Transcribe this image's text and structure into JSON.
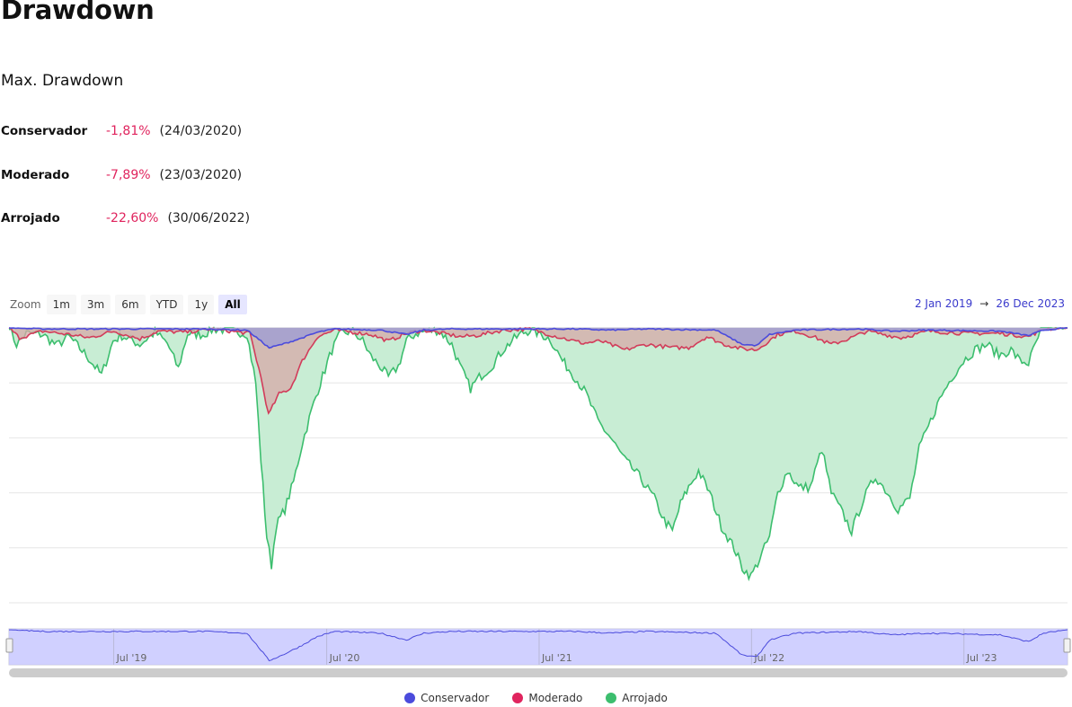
{
  "page": {
    "title": "Drawdown",
    "subtitle": "Max. Drawdown"
  },
  "max_drawdown": [
    {
      "name": "Conservador",
      "value": "-1,81%",
      "date": "(24/03/2020)"
    },
    {
      "name": "Moderado",
      "value": "-7,89%",
      "date": "(23/03/2020)"
    },
    {
      "name": "Arrojado",
      "value": "-22,60%",
      "date": "(30/06/2022)"
    }
  ],
  "zoom": {
    "label": "Zoom",
    "buttons": [
      "1m",
      "3m",
      "6m",
      "YTD",
      "1y",
      "All"
    ],
    "active": "All"
  },
  "range": {
    "from": "2 Jan 2019",
    "arrow": "→",
    "to": "26 Dec 2023"
  },
  "navigator": {
    "labels": [
      "Jul '19",
      "Jul '20",
      "Jul '21",
      "Jul '22",
      "Jul '23"
    ]
  },
  "chart_data": {
    "type": "area",
    "xlabel": "",
    "ylabel": "",
    "x_range": [
      "2019-01-02",
      "2023-12-26"
    ],
    "ylim": [
      -25,
      0
    ],
    "grid": true,
    "legend": "bottom-center",
    "series": [
      {
        "name": "Conservador",
        "color": "#4b4bdc",
        "fill": "#9b9bd6",
        "points": [
          [
            "2019-01-02",
            0
          ],
          [
            "2019-03-01",
            -0.1
          ],
          [
            "2019-06-01",
            -0.1
          ],
          [
            "2019-09-01",
            -0.1
          ],
          [
            "2019-12-01",
            -0.1
          ],
          [
            "2020-02-15",
            -0.2
          ],
          [
            "2020-03-10",
            -1.2
          ],
          [
            "2020-03-24",
            -1.81
          ],
          [
            "2020-04-15",
            -1.5
          ],
          [
            "2020-05-15",
            -1.0
          ],
          [
            "2020-06-15",
            -0.4
          ],
          [
            "2020-07-15",
            -0.1
          ],
          [
            "2020-10-01",
            -0.2
          ],
          [
            "2020-11-15",
            -0.6
          ],
          [
            "2020-12-15",
            -0.2
          ],
          [
            "2021-02-01",
            -0.1
          ],
          [
            "2021-06-01",
            -0.1
          ],
          [
            "2021-09-01",
            -0.1
          ],
          [
            "2021-11-01",
            -0.2
          ],
          [
            "2022-01-01",
            -0.1
          ],
          [
            "2022-05-01",
            -0.2
          ],
          [
            "2022-06-15",
            -1.5
          ],
          [
            "2022-07-10",
            -1.6
          ],
          [
            "2022-08-01",
            -0.6
          ],
          [
            "2022-09-15",
            -0.2
          ],
          [
            "2023-01-01",
            -0.1
          ],
          [
            "2023-03-01",
            -0.3
          ],
          [
            "2023-05-01",
            -0.2
          ],
          [
            "2023-09-01",
            -0.3
          ],
          [
            "2023-10-20",
            -0.7
          ],
          [
            "2023-11-15",
            -0.2
          ],
          [
            "2023-12-26",
            0
          ]
        ]
      },
      {
        "name": "Moderado",
        "color": "#d23c5a",
        "fill": "#d7a8a8",
        "points": [
          [
            "2019-01-02",
            0
          ],
          [
            "2019-01-20",
            -0.9
          ],
          [
            "2019-03-01",
            -0.3
          ],
          [
            "2019-04-15",
            -0.6
          ],
          [
            "2019-05-20",
            -0.9
          ],
          [
            "2019-07-01",
            -0.3
          ],
          [
            "2019-08-15",
            -1.0
          ],
          [
            "2019-09-15",
            -0.3
          ],
          [
            "2019-11-01",
            -0.4
          ],
          [
            "2019-12-15",
            -0.1
          ],
          [
            "2020-02-20",
            -0.5
          ],
          [
            "2020-03-10",
            -4.5
          ],
          [
            "2020-03-23",
            -7.89
          ],
          [
            "2020-04-10",
            -6.0
          ],
          [
            "2020-04-30",
            -5.5
          ],
          [
            "2020-05-20",
            -3.0
          ],
          [
            "2020-06-15",
            -0.8
          ],
          [
            "2020-07-15",
            -0.2
          ],
          [
            "2020-09-15",
            -0.6
          ],
          [
            "2020-10-15",
            -1.2
          ],
          [
            "2020-11-15",
            -0.5
          ],
          [
            "2020-12-15",
            -0.2
          ],
          [
            "2021-02-15",
            -0.8
          ],
          [
            "2021-03-15",
            -0.7
          ],
          [
            "2021-05-01",
            -0.2
          ],
          [
            "2021-06-15",
            -0.1
          ],
          [
            "2021-08-01",
            -0.8
          ],
          [
            "2021-09-15",
            -1.4
          ],
          [
            "2021-10-15",
            -1.2
          ],
          [
            "2021-11-25",
            -2.0
          ],
          [
            "2022-01-01",
            -1.5
          ],
          [
            "2022-02-15",
            -1.8
          ],
          [
            "2022-03-15",
            -1.8
          ],
          [
            "2022-04-15",
            -0.8
          ],
          [
            "2022-05-15",
            -1.5
          ],
          [
            "2022-06-15",
            -1.9
          ],
          [
            "2022-07-10",
            -2.0
          ],
          [
            "2022-08-15",
            -0.6
          ],
          [
            "2022-09-15",
            -0.3
          ],
          [
            "2022-10-15",
            -0.8
          ],
          [
            "2022-11-15",
            -1.5
          ],
          [
            "2022-12-15",
            -1.0
          ],
          [
            "2023-01-15",
            -0.3
          ],
          [
            "2023-03-15",
            -0.9
          ],
          [
            "2023-05-01",
            -0.3
          ],
          [
            "2023-07-01",
            -0.5
          ],
          [
            "2023-09-01",
            -0.5
          ],
          [
            "2023-10-20",
            -0.8
          ],
          [
            "2023-11-15",
            -0.1
          ],
          [
            "2023-12-26",
            0
          ]
        ]
      },
      {
        "name": "Arrojado",
        "color": "#3cbe6e",
        "fill": "#c8edd4",
        "points": [
          [
            "2019-01-02",
            0
          ],
          [
            "2019-01-15",
            -1.5
          ],
          [
            "2019-02-01",
            -0.5
          ],
          [
            "2019-03-01",
            -0.6
          ],
          [
            "2019-03-25",
            -1.6
          ],
          [
            "2019-04-15",
            -0.8
          ],
          [
            "2019-05-15",
            -2.5
          ],
          [
            "2019-06-10",
            -4.3
          ],
          [
            "2019-06-30",
            -1.2
          ],
          [
            "2019-07-15",
            -0.7
          ],
          [
            "2019-08-15",
            -1.5
          ],
          [
            "2019-09-10",
            -0.4
          ],
          [
            "2019-10-01",
            -1.4
          ],
          [
            "2019-10-20",
            -3.7
          ],
          [
            "2019-11-05",
            -0.5
          ],
          [
            "2019-12-01",
            -0.6
          ],
          [
            "2019-12-20",
            -0.1
          ],
          [
            "2020-01-15",
            -0.2
          ],
          [
            "2020-02-15",
            -0.5
          ],
          [
            "2020-03-01",
            -5.0
          ],
          [
            "2020-03-10",
            -12.0
          ],
          [
            "2020-03-20",
            -19.0
          ],
          [
            "2020-03-28",
            -21.6
          ],
          [
            "2020-04-05",
            -18.0
          ],
          [
            "2020-04-20",
            -16.5
          ],
          [
            "2020-05-05",
            -14.0
          ],
          [
            "2020-05-20",
            -10.5
          ],
          [
            "2020-06-05",
            -7.5
          ],
          [
            "2020-06-20",
            -5.0
          ],
          [
            "2020-07-10",
            -2.0
          ],
          [
            "2020-07-25",
            -0.5
          ],
          [
            "2020-08-15",
            -0.3
          ],
          [
            "2020-09-01",
            -1.2
          ],
          [
            "2020-09-15",
            -2.6
          ],
          [
            "2020-10-01",
            -3.5
          ],
          [
            "2020-10-15",
            -4.5
          ],
          [
            "2020-11-01",
            -3.5
          ],
          [
            "2020-11-15",
            -1.2
          ],
          [
            "2020-12-01",
            -0.5
          ],
          [
            "2020-12-20",
            -0.3
          ],
          [
            "2021-01-10",
            -0.2
          ],
          [
            "2021-02-01",
            -1.5
          ],
          [
            "2021-02-15",
            -3.5
          ],
          [
            "2021-03-05",
            -5.5
          ],
          [
            "2021-03-20",
            -4.5
          ],
          [
            "2021-04-10",
            -3.5
          ],
          [
            "2021-04-30",
            -2.0
          ],
          [
            "2021-05-15",
            -1.2
          ],
          [
            "2021-06-01",
            -0.5
          ],
          [
            "2021-06-15",
            -0.2
          ],
          [
            "2021-07-01",
            -0.5
          ],
          [
            "2021-07-20",
            -1.0
          ],
          [
            "2021-08-10",
            -3.0
          ],
          [
            "2021-09-01",
            -4.5
          ],
          [
            "2021-09-20",
            -6.0
          ],
          [
            "2021-10-10",
            -8.5
          ],
          [
            "2021-11-01",
            -10.0
          ],
          [
            "2021-11-25",
            -12.0
          ],
          [
            "2021-12-20",
            -13.5
          ],
          [
            "2022-01-15",
            -15.5
          ],
          [
            "2022-02-01",
            -17.5
          ],
          [
            "2022-02-15",
            -18.5
          ],
          [
            "2022-03-01",
            -16.0
          ],
          [
            "2022-03-15",
            -14.5
          ],
          [
            "2022-04-01",
            -13.0
          ],
          [
            "2022-04-20",
            -15.0
          ],
          [
            "2022-05-10",
            -18.0
          ],
          [
            "2022-06-01",
            -20.0
          ],
          [
            "2022-06-15",
            -21.8
          ],
          [
            "2022-06-30",
            -22.6
          ],
          [
            "2022-07-15",
            -21.0
          ],
          [
            "2022-08-01",
            -19.0
          ],
          [
            "2022-08-15",
            -15.0
          ],
          [
            "2022-09-01",
            -13.0
          ],
          [
            "2022-09-20",
            -14.5
          ],
          [
            "2022-10-10",
            -14.5
          ],
          [
            "2022-10-30",
            -11.0
          ],
          [
            "2022-11-15",
            -15.0
          ],
          [
            "2022-12-01",
            -16.5
          ],
          [
            "2022-12-20",
            -18.5
          ],
          [
            "2023-01-10",
            -15.5
          ],
          [
            "2023-01-30",
            -13.5
          ],
          [
            "2023-02-20",
            -15.0
          ],
          [
            "2023-03-10",
            -16.5
          ],
          [
            "2023-03-30",
            -15.5
          ],
          [
            "2023-04-15",
            -11.0
          ],
          [
            "2023-05-01",
            -9.0
          ],
          [
            "2023-05-20",
            -6.5
          ],
          [
            "2023-06-10",
            -4.5
          ],
          [
            "2023-06-30",
            -3.0
          ],
          [
            "2023-07-20",
            -2.0
          ],
          [
            "2023-08-10",
            -1.5
          ],
          [
            "2023-08-30",
            -2.5
          ],
          [
            "2023-09-20",
            -2.0
          ],
          [
            "2023-10-05",
            -3.0
          ],
          [
            "2023-10-20",
            -3.2
          ],
          [
            "2023-11-01",
            -1.5
          ],
          [
            "2023-11-10",
            -0.3
          ],
          [
            "2023-11-20",
            0
          ],
          [
            "2023-12-26",
            0
          ]
        ]
      }
    ]
  }
}
